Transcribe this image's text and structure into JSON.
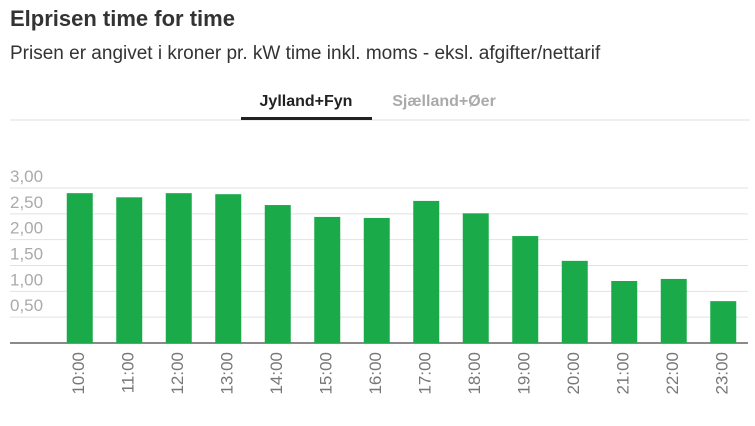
{
  "chart_data": {
    "type": "bar",
    "title": "Elprisen time for time",
    "subtitle": "Prisen er angivet i kroner pr. kW time inkl. moms - eksl. afgifter/nettarif",
    "tabs": [
      "Jylland+Fyn",
      "Sjælland+Øer"
    ],
    "categories": [
      "10:00",
      "11:00",
      "12:00",
      "13:00",
      "14:00",
      "15:00",
      "16:00",
      "17:00",
      "18:00",
      "19:00",
      "20:00",
      "21:00",
      "22:00",
      "23:00"
    ],
    "values": [
      2.9,
      2.82,
      2.9,
      2.88,
      2.67,
      2.44,
      2.42,
      2.75,
      2.51,
      2.07,
      1.59,
      1.2,
      1.24,
      0.81
    ],
    "color": "#1aaa4a",
    "ylim": [
      0,
      3
    ],
    "yticks": [
      {
        "value": 0.5,
        "label": "0,50"
      },
      {
        "value": 1,
        "label": "1,00"
      },
      {
        "value": 1.5,
        "label": "1,50"
      },
      {
        "value": 2,
        "label": "2,00"
      },
      {
        "value": 2.5,
        "label": "2,50"
      },
      {
        "value": 3,
        "label": "3,00"
      }
    ],
    "grid": true
  }
}
